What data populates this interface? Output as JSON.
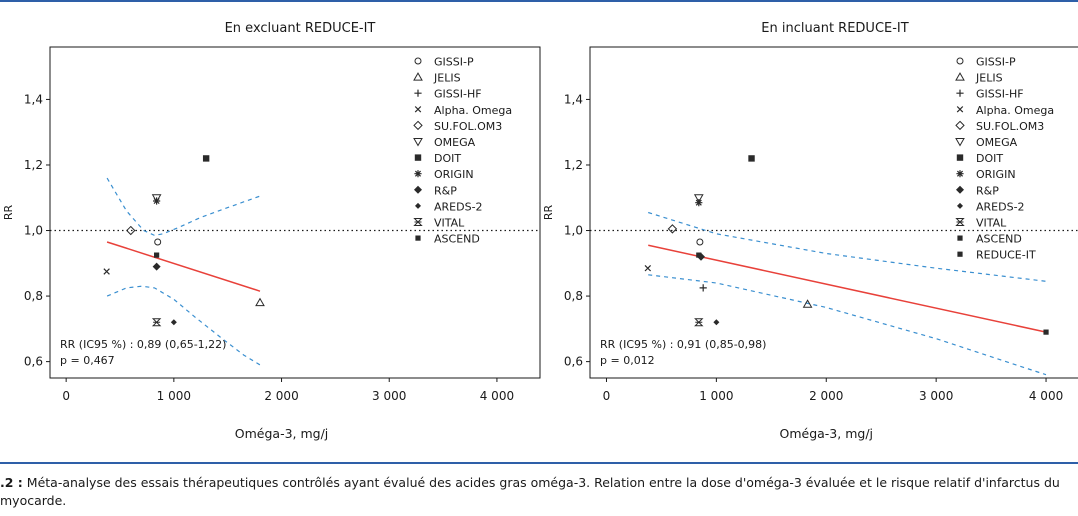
{
  "caption": {
    "label": ".2 :",
    "text": "Méta-analyse des essais thérapeutiques contrôlés ayant évalué des acides gras oméga-3. Relation entre la dose d'oméga-3 évaluée et le risque relatif d'infarctus du myocarde."
  },
  "colors": {
    "regression": "#e8413a",
    "confidence_band": "#3a8fd0",
    "reference_line": "#1a1a1a",
    "markers": "#2a2a2a",
    "rule": "#2e5fa8"
  },
  "chart_data": [
    {
      "type": "scatter",
      "title": "En excluant REDUCE-IT",
      "xlabel": "Oméga-3, mg/j",
      "ylabel": "RR",
      "xlim": [
        -150,
        4400
      ],
      "ylim": [
        0.55,
        1.56
      ],
      "xticks": [
        0,
        1000,
        2000,
        3000,
        4000
      ],
      "xtick_labels": [
        "0",
        "1 000",
        "2 000",
        "3 000",
        "4 000"
      ],
      "yticks": [
        0.6,
        0.8,
        1.0,
        1.2,
        1.4
      ],
      "ytick_labels": [
        "0,6",
        "0,8",
        "1,0",
        "1,2",
        "1,4"
      ],
      "grid": false,
      "legend_position": "top-right",
      "reference_y": 1.0,
      "annotation": [
        "RR (IC95 %) : 0,89 (0,65-1,22)",
        "p = 0,467"
      ],
      "series": [
        {
          "name": "GISSI-P",
          "marker": "circle",
          "x": [
            850
          ],
          "y": [
            0.965
          ]
        },
        {
          "name": "JELIS",
          "marker": "triangle-up",
          "x": [
            1800
          ],
          "y": [
            0.78
          ]
        },
        {
          "name": "GISSI-HF",
          "marker": "plus",
          "x": [],
          "y": []
        },
        {
          "name": "Alpha. Omega",
          "marker": "x",
          "x": [
            376
          ],
          "y": [
            0.875
          ]
        },
        {
          "name": "SU.FOL.OM3",
          "marker": "diamond-open",
          "x": [
            600
          ],
          "y": [
            1.0
          ]
        },
        {
          "name": "OMEGA",
          "marker": "triangle-down",
          "x": [
            840
          ],
          "y": [
            1.1
          ]
        },
        {
          "name": "DOIT",
          "marker": "square",
          "x": [
            1300
          ],
          "y": [
            1.22
          ]
        },
        {
          "name": "ORIGIN",
          "marker": "asterisk",
          "x": [
            840
          ],
          "y": [
            1.09
          ]
        },
        {
          "name": "R&P",
          "marker": "diamond",
          "x": [
            840
          ],
          "y": [
            0.89
          ]
        },
        {
          "name": "AREDS-2",
          "marker": "diamond-small",
          "x": [
            1000
          ],
          "y": [
            0.72
          ]
        },
        {
          "name": "VITAL",
          "marker": "hourglass",
          "x": [
            840
          ],
          "y": [
            0.72
          ]
        },
        {
          "name": "ASCEND",
          "marker": "square-small",
          "x": [
            840
          ],
          "y": [
            0.925
          ]
        }
      ],
      "regression": {
        "x": [
          380,
          1800
        ],
        "y": [
          0.965,
          0.815
        ]
      },
      "ci_upper": {
        "x": [
          380,
          560,
          720,
          820,
          900,
          1050,
          1250,
          1500,
          1800
        ],
        "y": [
          1.16,
          1.06,
          1.0,
          0.985,
          0.99,
          1.01,
          1.04,
          1.07,
          1.105
        ]
      },
      "ci_lower": {
        "x": [
          380,
          560,
          700,
          820,
          1000,
          1200,
          1450,
          1650,
          1800
        ],
        "y": [
          0.8,
          0.825,
          0.83,
          0.825,
          0.79,
          0.735,
          0.67,
          0.62,
          0.59
        ]
      }
    },
    {
      "type": "scatter",
      "title": "En incluant REDUCE-IT",
      "xlabel": "Oméga-3, mg/j",
      "ylabel": "RR",
      "xlim": [
        -150,
        4400
      ],
      "ylim": [
        0.55,
        1.56
      ],
      "xticks": [
        0,
        1000,
        2000,
        3000,
        4000
      ],
      "xtick_labels": [
        "0",
        "1 000",
        "2 000",
        "3 000",
        "4 000"
      ],
      "yticks": [
        0.6,
        0.8,
        1.0,
        1.2,
        1.4
      ],
      "ytick_labels": [
        "0,6",
        "0,8",
        "1,0",
        "1,2",
        "1,4"
      ],
      "grid": false,
      "legend_position": "top-right",
      "reference_y": 1.0,
      "annotation": [
        "RR (IC95 %) : 0,91 (0,85-0,98)",
        "p = 0,012"
      ],
      "series": [
        {
          "name": "GISSI-P",
          "marker": "circle",
          "x": [
            850
          ],
          "y": [
            0.965
          ]
        },
        {
          "name": "JELIS",
          "marker": "triangle-up",
          "x": [
            1830
          ],
          "y": [
            0.775
          ]
        },
        {
          "name": "GISSI-HF",
          "marker": "plus",
          "x": [
            880
          ],
          "y": [
            0.825
          ]
        },
        {
          "name": "Alpha. Omega",
          "marker": "x",
          "x": [
            376
          ],
          "y": [
            0.885
          ]
        },
        {
          "name": "SU.FOL.OM3",
          "marker": "diamond-open",
          "x": [
            600
          ],
          "y": [
            1.005
          ]
        },
        {
          "name": "OMEGA",
          "marker": "triangle-down",
          "x": [
            840
          ],
          "y": [
            1.1
          ]
        },
        {
          "name": "DOIT",
          "marker": "square",
          "x": [
            1320
          ],
          "y": [
            1.22
          ]
        },
        {
          "name": "ORIGIN",
          "marker": "asterisk",
          "x": [
            840
          ],
          "y": [
            1.085
          ]
        },
        {
          "name": "R&P",
          "marker": "diamond",
          "x": [
            860
          ],
          "y": [
            0.92
          ]
        },
        {
          "name": "AREDS-2",
          "marker": "diamond-small",
          "x": [
            1000
          ],
          "y": [
            0.72
          ]
        },
        {
          "name": "VITAL",
          "marker": "hourglass",
          "x": [
            840
          ],
          "y": [
            0.72
          ]
        },
        {
          "name": "ASCEND",
          "marker": "square-small",
          "x": [
            840
          ],
          "y": [
            0.925
          ]
        },
        {
          "name": "REDUCE-IT",
          "marker": "square-small",
          "x": [
            4000
          ],
          "y": [
            0.69
          ]
        }
      ],
      "regression": {
        "x": [
          380,
          4000
        ],
        "y": [
          0.955,
          0.69
        ]
      },
      "ci_upper": {
        "x": [
          380,
          1000,
          2000,
          3000,
          4000
        ],
        "y": [
          1.055,
          0.99,
          0.93,
          0.885,
          0.845
        ]
      },
      "ci_lower": {
        "x": [
          380,
          1000,
          2000,
          3000,
          4000
        ],
        "y": [
          0.865,
          0.84,
          0.765,
          0.67,
          0.56
        ]
      }
    }
  ]
}
